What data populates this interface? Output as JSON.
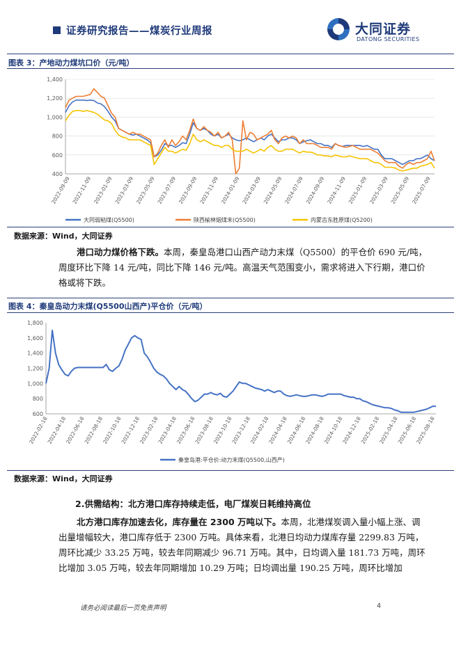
{
  "header": {
    "title": "证券研究报告——煤炭行业周报",
    "logo_cn": "大同证券",
    "logo_en": "DATONG SECURITIES"
  },
  "figure3": {
    "title": "图表 3：产地动力煤坑口价（元/吨）",
    "source": "数据来源：Wind，大同证券",
    "legend": [
      "大同弱粘煤(Q5500)",
      "陕西榆林烟煤末(Q5500)",
      "内蒙古东胜原煤(Q5200)"
    ]
  },
  "figure4": {
    "title": "图表 4：秦皇岛动力末煤(Q5500山西产)平仓价（元/吨）",
    "source": "数据来源：Wind，大同证券",
    "legend": [
      "秦皇岛港:平仓价:动力末煤(Q5500,山西产)"
    ]
  },
  "para1": {
    "bold": "港口动力煤价格下跌。",
    "text": "本周，秦皇岛港口山西产动力末煤（Q5500）的平仓价 690 元/吨，周度环比下降 14 元/吨，同比下降 146 元/吨。高温天气范围变小，需求将进入下行期，港口价格或将下跌。"
  },
  "section2": {
    "title": "2.供需结构：北方港口库存持续走低，电厂煤炭日耗维持高位"
  },
  "para2": {
    "bold": "北方港口库存加速去化，库存量在 2300 万吨以下。",
    "text": "本周，北港煤炭调入量小幅上涨、调出量增幅较大，港口库存低于 2300 万吨。具体来看，北港日均动力煤库存量 2299.83 万吨，周环比减少 33.25 万吨，较去年同期减少 96.71 万吨。其中，日均调入量 181.73 万吨，周环比增加 3.05 万吨，较去年同期增加 10.29 万吨；日均调出量 190.25 万吨，周环比增加"
  },
  "footer": {
    "note": "请务必阅读最后一页免责声明",
    "page": "4"
  },
  "chart_data": [
    {
      "type": "line",
      "title": "图表 3：产地动力煤坑口价（元/吨）",
      "ylim": [
        400,
        1400
      ],
      "yticks": [
        "1,400",
        "1,200",
        "1,000",
        "800",
        "600",
        "400"
      ],
      "xticks": [
        "2022-09-09",
        "2022-11-09",
        "2023-01-09",
        "2023-03-09",
        "2023-05-09",
        "2023-07-09",
        "2023-09-09",
        "2023-11-09",
        "2024-01-09",
        "2024-03-09",
        "2024-05-09",
        "2024-07-09",
        "2024-09-09",
        "2024-11-09",
        "2025-01-09",
        "2025-03-09",
        "2025-05-09",
        "2025-07-09"
      ],
      "legend_position": "bottom",
      "colors": [
        "#4472c4",
        "#ed7d31",
        "#f5c300"
      ],
      "series": [
        {
          "name": "大同弱粘煤(Q5500)",
          "values": [
            1050,
            1120,
            1160,
            1180,
            1180,
            1180,
            1175,
            1180,
            1175,
            1150,
            1140,
            1110,
            1060,
            1000,
            960,
            880,
            860,
            840,
            820,
            810,
            820,
            800,
            780,
            760,
            730,
            580,
            600,
            650,
            720,
            700,
            700,
            680,
            700,
            730,
            720,
            820,
            940,
            880,
            860,
            880,
            860,
            820,
            800,
            820,
            780,
            800,
            820,
            780,
            760,
            750,
            760,
            780,
            760,
            740,
            760,
            780,
            760,
            800,
            820,
            780,
            740,
            760,
            760,
            780,
            780,
            760,
            720,
            740,
            750,
            760,
            740,
            720,
            720,
            700,
            700,
            680,
            720,
            700,
            690,
            700,
            700,
            700,
            700,
            700,
            690,
            700,
            680,
            660,
            660,
            600,
            560,
            560,
            560,
            540,
            520,
            500,
            520,
            540,
            540,
            560,
            560,
            580,
            600,
            560,
            540
          ]
        },
        {
          "name": "陕西榆林烟煤末(Q5500)",
          "values": [
            1100,
            1180,
            1200,
            1220,
            1220,
            1220,
            1230,
            1240,
            1300,
            1260,
            1220,
            1200,
            1120,
            1040,
            1000,
            880,
            860,
            840,
            820,
            840,
            820,
            820,
            800,
            780,
            760,
            580,
            620,
            700,
            760,
            680,
            760,
            700,
            740,
            800,
            760,
            860,
            980,
            880,
            860,
            900,
            860,
            840,
            800,
            840,
            780,
            800,
            840,
            760,
            400,
            460,
            960,
            760,
            840,
            820,
            760,
            780,
            800,
            820,
            860,
            760,
            720,
            780,
            800,
            780,
            800,
            780,
            720,
            760,
            720,
            720,
            720,
            700,
            680,
            680,
            680,
            660,
            720,
            700,
            690,
            680,
            690,
            700,
            680,
            660,
            660,
            660,
            660,
            640,
            620,
            580,
            540,
            520,
            520,
            520,
            480,
            460,
            500,
            520,
            500,
            520,
            520,
            540,
            560,
            640,
            540
          ]
        },
        {
          "name": "内蒙古东胜原煤(Q5200)",
          "values": [
            960,
            1020,
            1060,
            1070,
            1070,
            1060,
            1070,
            1060,
            1050,
            1030,
            1000,
            970,
            960,
            930,
            860,
            810,
            790,
            780,
            760,
            760,
            760,
            760,
            740,
            720,
            700,
            500,
            560,
            620,
            680,
            640,
            640,
            620,
            640,
            660,
            650,
            720,
            820,
            760,
            740,
            760,
            740,
            720,
            700,
            700,
            680,
            700,
            700,
            660,
            640,
            640,
            640,
            660,
            640,
            620,
            640,
            660,
            640,
            680,
            700,
            660,
            640,
            640,
            660,
            660,
            660,
            640,
            620,
            640,
            630,
            630,
            620,
            600,
            600,
            590,
            590,
            580,
            600,
            590,
            580,
            580,
            590,
            580,
            570,
            560,
            560,
            560,
            540,
            520,
            520,
            500,
            470,
            470,
            470,
            460,
            440,
            430,
            440,
            450,
            460,
            460,
            480,
            490,
            500,
            520,
            460
          ]
        }
      ]
    },
    {
      "type": "line",
      "title": "图表 4：秦皇岛动力末煤(Q5500山西产)平仓价（元/吨）",
      "ylim": [
        600,
        1800
      ],
      "yticks": [
        "1,800",
        "1,600",
        "1,400",
        "1,200",
        "1,000",
        "800",
        "600"
      ],
      "xticks": [
        "2022-02-18",
        "2022-04-18",
        "2022-06-18",
        "2022-08-18",
        "2022-10-18",
        "2022-12-18",
        "2023-02-18",
        "2023-04-18",
        "2023-06-18",
        "2023-08-18",
        "2023-10-18",
        "2023-12-18",
        "2024-02-18",
        "2024-04-18",
        "2024-06-18",
        "2024-08-18",
        "2024-10-18",
        "2024-12-18",
        "2025-02-18",
        "2025-04-18",
        "2025-06-18",
        "2025-08-18"
      ],
      "legend_position": "bottom",
      "colors": [
        "#4472c4"
      ],
      "series": [
        {
          "name": "秦皇岛港:平仓价:动力末煤(Q5500,山西产)",
          "values": [
            1000,
            1200,
            1700,
            1400,
            1250,
            1180,
            1120,
            1100,
            1160,
            1200,
            1210,
            1210,
            1210,
            1210,
            1210,
            1210,
            1210,
            1210,
            1210,
            1250,
            1180,
            1160,
            1200,
            1230,
            1320,
            1440,
            1520,
            1600,
            1630,
            1600,
            1580,
            1400,
            1350,
            1280,
            1200,
            1150,
            1120,
            1100,
            1060,
            1000,
            960,
            920,
            960,
            920,
            900,
            850,
            800,
            760,
            780,
            820,
            860,
            860,
            880,
            860,
            850,
            870,
            830,
            820,
            860,
            900,
            960,
            1020,
            1000,
            1000,
            980,
            960,
            940,
            930,
            920,
            900,
            920,
            900,
            880,
            900,
            900,
            860,
            840,
            830,
            840,
            850,
            840,
            830,
            830,
            840,
            850,
            850,
            840,
            830,
            840,
            860,
            860,
            860,
            860,
            860,
            840,
            830,
            820,
            820,
            800,
            800,
            770,
            760,
            740,
            720,
            710,
            700,
            690,
            680,
            680,
            670,
            650,
            640,
            620,
            620,
            620,
            620,
            620,
            630,
            640,
            650,
            660,
            680,
            700,
            700
          ]
        }
      ]
    }
  ]
}
